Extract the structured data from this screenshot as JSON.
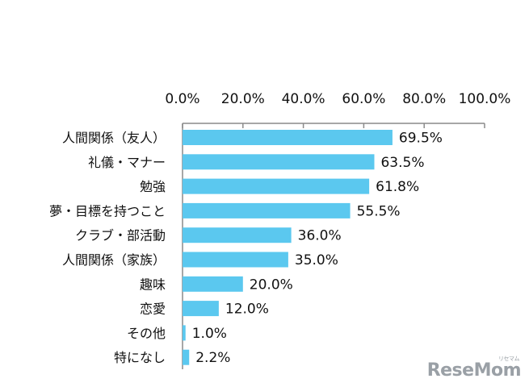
{
  "chart_data": {
    "type": "bar",
    "orientation": "horizontal",
    "categories": [
      "人間関係（友人）",
      "礼儀・マナー",
      "勉強",
      "夢・目標を持つこと",
      "クラブ・部活動",
      "人間関係（家族）",
      "趣味",
      "恋愛",
      "その他",
      "特になし"
    ],
    "values": [
      69.5,
      63.5,
      61.8,
      55.5,
      36.0,
      35.0,
      20.0,
      12.0,
      1.0,
      2.2
    ],
    "value_labels": [
      "69.5%",
      "63.5%",
      "61.8%",
      "55.5%",
      "36.0%",
      "35.0%",
      "20.0%",
      "12.0%",
      "1.0%",
      "2.2%"
    ],
    "xlim": [
      0,
      100
    ],
    "x_ticks": [
      "0.0%",
      "20.0%",
      "40.0%",
      "60.0%",
      "80.0%",
      "100.0%"
    ],
    "x_tick_values": [
      0,
      20,
      40,
      60,
      80,
      100
    ],
    "axis_position": "top",
    "grid": false,
    "legend": "none",
    "bar_color": "#5bc8ef"
  },
  "watermark": {
    "text": "ReseMom",
    "subtext": "リセマム"
  }
}
